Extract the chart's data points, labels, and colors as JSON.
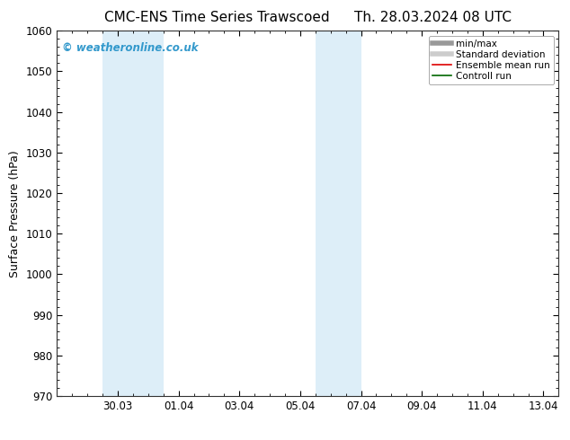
{
  "title_left": "CMC-ENS Time Series Trawscoed",
  "title_right": "Th. 28.03.2024 08 UTC",
  "ylabel": "Surface Pressure (hPa)",
  "ylim": [
    970,
    1060
  ],
  "yticks": [
    970,
    980,
    990,
    1000,
    1010,
    1020,
    1030,
    1040,
    1050,
    1060
  ],
  "bg_color": "#ffffff",
  "plot_bg_color": "#ffffff",
  "shaded_regions": [
    {
      "x_start": 1.5,
      "x_end": 3.5,
      "color": "#ddeef8"
    },
    {
      "x_start": 8.5,
      "x_end": 10.0,
      "color": "#ddeef8"
    }
  ],
  "xtick_labels": [
    "30.03",
    "01.04",
    "03.04",
    "05.04",
    "07.04",
    "09.04",
    "11.04",
    "13.04"
  ],
  "xtick_positions": [
    2,
    4,
    6,
    8,
    10,
    12,
    14,
    16
  ],
  "xlim": [
    0,
    16
  ],
  "watermark_text": "© weatheronline.co.uk",
  "watermark_color": "#3399cc",
  "legend_entries": [
    {
      "label": "min/max",
      "color": "#999999",
      "lw": 4
    },
    {
      "label": "Standard deviation",
      "color": "#cccccc",
      "lw": 4
    },
    {
      "label": "Ensemble mean run",
      "color": "#dd0000",
      "lw": 1.2
    },
    {
      "label": "Controll run",
      "color": "#006600",
      "lw": 1.2
    }
  ],
  "title_fontsize": 11,
  "tick_labelsize": 8.5,
  "ylabel_fontsize": 9
}
